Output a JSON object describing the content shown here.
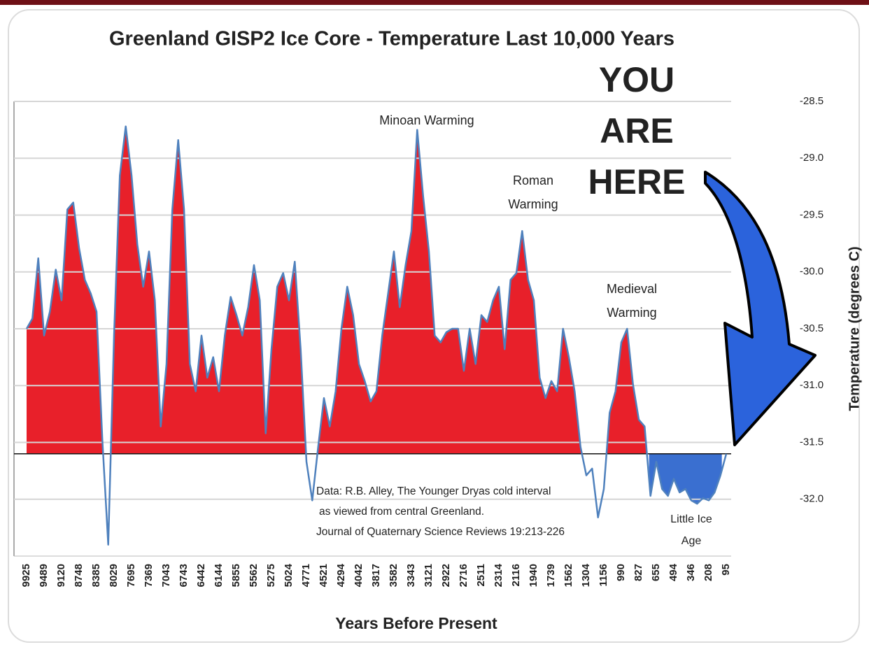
{
  "chart_data": {
    "type": "area",
    "title": "Greenland GISP2 Ice Core - Temperature  Last 10,000 Years",
    "x_label": "Years Before Present",
    "y_label": "Temperature (degrees C)",
    "categories": [
      "9925",
      null,
      null,
      "9489",
      null,
      null,
      "9120",
      null,
      null,
      "8748",
      null,
      null,
      "8385",
      null,
      null,
      "8029",
      null,
      null,
      "7695",
      null,
      null,
      "7369",
      null,
      null,
      "7043",
      null,
      null,
      "6743",
      null,
      null,
      "6442",
      null,
      null,
      "6144",
      null,
      null,
      "5855",
      null,
      null,
      "5562",
      null,
      null,
      "5275",
      null,
      null,
      "5024",
      null,
      null,
      "4771",
      null,
      null,
      "4521",
      null,
      null,
      "4294",
      null,
      null,
      "4042",
      null,
      null,
      "3817",
      null,
      null,
      "3582",
      null,
      null,
      "3343",
      null,
      null,
      "3121",
      null,
      null,
      "2922",
      null,
      null,
      "2716",
      null,
      null,
      "2511",
      null,
      null,
      "2314",
      null,
      null,
      "2116",
      null,
      null,
      "1940",
      null,
      null,
      "1739",
      null,
      null,
      "1562",
      null,
      null,
      "1304",
      null,
      null,
      "1156",
      null,
      null,
      "990",
      null,
      null,
      "827",
      null,
      null,
      "655",
      null,
      null,
      "494",
      null,
      null,
      "346",
      null,
      null,
      "208",
      null,
      null,
      "95"
    ],
    "series": [
      {
        "color": "#4f81bd",
        "fill": "#e8202a",
        "below_fill": "#3a6fd0",
        "values": [
          -30.5,
          -30.41,
          -29.88,
          -30.56,
          -30.35,
          -29.98,
          -30.25,
          -29.45,
          -29.39,
          -29.79,
          -30.07,
          -30.19,
          -30.35,
          -31.48,
          -32.4,
          -30.56,
          -29.15,
          -28.72,
          -29.15,
          -29.76,
          -30.13,
          -29.82,
          -30.25,
          -31.36,
          -30.81,
          -29.45,
          -28.84,
          -29.45,
          -30.81,
          -31.05,
          -30.56,
          -30.93,
          -30.75,
          -31.05,
          -30.56,
          -30.22,
          -30.38,
          -30.56,
          -30.31,
          -29.94,
          -30.25,
          -31.42,
          -30.68,
          -30.13,
          -30.01,
          -30.25,
          -29.91,
          -30.68,
          -31.67,
          -32.01,
          -31.54,
          -31.11,
          -31.36,
          -31.05,
          -30.5,
          -30.13,
          -30.38,
          -30.81,
          -30.96,
          -31.14,
          -31.05,
          -30.56,
          -30.19,
          -29.82,
          -30.31,
          -29.94,
          -29.64,
          -28.75,
          -29.33,
          -29.82,
          -30.56,
          -30.62,
          -30.53,
          -30.5,
          -30.5,
          -30.87,
          -30.5,
          -30.81,
          -30.38,
          -30.44,
          -30.25,
          -30.13,
          -30.68,
          -30.07,
          -30.01,
          -29.64,
          -30.07,
          -30.25,
          -30.93,
          -31.11,
          -30.96,
          -31.05,
          -30.5,
          -30.75,
          -31.05,
          -31.54,
          -31.79,
          -31.73,
          -32.16,
          -31.91,
          -31.24,
          -31.05,
          -30.62,
          -30.5,
          -30.99,
          -31.3,
          -31.36,
          -31.97,
          -31.67,
          -31.91,
          -31.97,
          -31.82,
          -31.94,
          -31.91,
          -32.01,
          -32.04,
          -31.99,
          -32.01,
          -31.94,
          -31.79,
          -31.6
        ]
      }
    ],
    "reference_line": -31.6,
    "ylim": [
      -32.5,
      -28.5
    ],
    "yticks": [
      -28.5,
      {
        "value": -29,
        "label": "-29.0"
      },
      -29.5,
      {
        "value": -30,
        "label": "-30.0"
      },
      -30.5,
      {
        "value": -31,
        "label": "-31.0"
      },
      -31.5,
      {
        "value": -32,
        "label": "-32.0"
      }
    ],
    "grid": true,
    "annotations": [
      [
        "Minoan Warming"
      ],
      [
        "Roman",
        "Warming"
      ],
      [
        "Medieval",
        "Warming"
      ],
      [
        "Little Ice",
        "Age"
      ],
      [
        "Data: R.B. Alley,  The Younger Dryas cold interval",
        "as viewed from central Greenland.",
        "Journal of Quaternary  Science Reviews 19:213-226"
      ],
      [
        "YOU",
        "ARE",
        "HERE"
      ]
    ]
  }
}
